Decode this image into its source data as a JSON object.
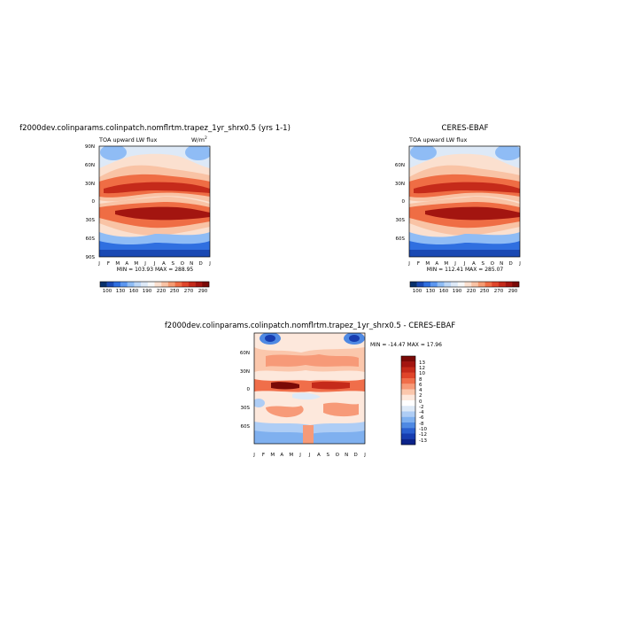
{
  "chart_data": [
    {
      "type": "heatmap",
      "title": "f2000dev.colinparams.colinpatch.nomflrtm.trapez_1yr_shrx0.5 (yrs 1-1)",
      "subtitle": "TOA upward LW flux",
      "units": "W/m",
      "units_sup": "2",
      "stats": "MIN = 103.93   MAX = 288.95",
      "x_ticks": [
        "J",
        "F",
        "M",
        "A",
        "M",
        "J",
        "J",
        "A",
        "S",
        "O",
        "N",
        "D",
        "J"
      ],
      "y_ticks": [
        "90N",
        "60N",
        "30N",
        "0",
        "30S",
        "60S",
        "90S"
      ],
      "colorbar_labels": [
        "100",
        "130",
        "160",
        "190",
        "220",
        "250",
        "270",
        "290"
      ]
    },
    {
      "type": "heatmap",
      "title": "CERES-EBAF",
      "subtitle": "TOA upward LW flux",
      "stats": "MIN = 112.41   MAX = 285.07",
      "x_ticks": [
        "J",
        "F",
        "M",
        "A",
        "M",
        "J",
        "J",
        "A",
        "S",
        "O",
        "N",
        "D",
        "J"
      ],
      "y_ticks": [
        "60N",
        "30N",
        "0",
        "30S",
        "60S"
      ],
      "colorbar_labels": [
        "100",
        "130",
        "160",
        "190",
        "220",
        "250",
        "270",
        "290"
      ]
    },
    {
      "type": "heatmap",
      "title": "f2000dev.colinparams.colinpatch.nomflrtm.trapez_1yr_shrx0.5 - CERES-EBAF",
      "stats": "MIN = -14.47   MAX =  17.96",
      "x_ticks": [
        "J",
        "F",
        "M",
        "A",
        "M",
        "J",
        "J",
        "A",
        "S",
        "O",
        "N",
        "D",
        "J"
      ],
      "y_ticks": [
        "60N",
        "30N",
        "0",
        "30S",
        "60S"
      ],
      "colorbar_labels": [
        "13",
        "12",
        "10",
        "8",
        "6",
        "4",
        "2",
        "0",
        "-2",
        "-4",
        "-6",
        "-8",
        "-10",
        "-12",
        "-13"
      ]
    }
  ],
  "colors": {
    "flux_scale": [
      "#08306b",
      "#1a49b3",
      "#2f6fe0",
      "#5b96f0",
      "#8fbcf5",
      "#bcd7f7",
      "#dde9f7",
      "#f7f7f7",
      "#fbe0cf",
      "#f9c3a5",
      "#f59b72",
      "#ef6d44",
      "#e0452a",
      "#c52a1a",
      "#a31510",
      "#7a0a07"
    ],
    "diff_scale": [
      "#7a0a07",
      "#a31510",
      "#c52a1a",
      "#e0452a",
      "#f06e4a",
      "#f79a78",
      "#fbc7ac",
      "#fde8dc",
      "#ffffff",
      "#dde9f7",
      "#aecdf5",
      "#7fb0ef",
      "#4f89e3",
      "#2a5fcf",
      "#173db0",
      "#0b238a"
    ]
  }
}
